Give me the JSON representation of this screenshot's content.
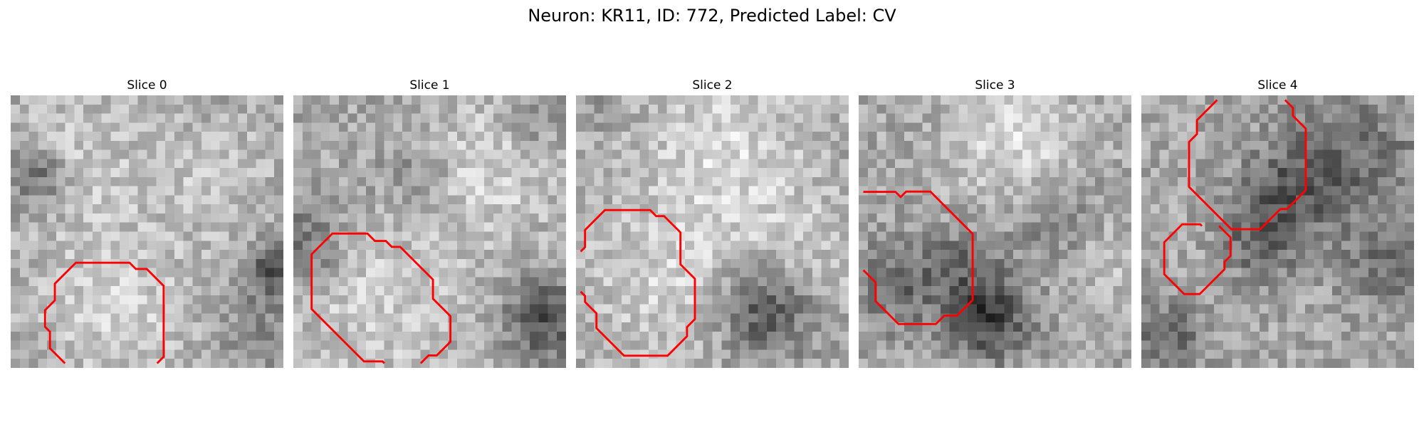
{
  "figure": {
    "title": "Neuron: KR11, ID: 772, Predicted Label: CV"
  },
  "panels": [
    {
      "title": "Slice 0",
      "seed": 11,
      "blobs": [
        [
          0.25,
          0.22,
          0.18,
          35
        ],
        [
          0.75,
          0.3,
          0.16,
          30
        ],
        [
          0.38,
          0.78,
          0.22,
          40
        ],
        [
          0.1,
          0.3,
          0.08,
          -70
        ],
        [
          0.97,
          0.65,
          0.07,
          -90
        ],
        [
          0.9,
          0.88,
          0.1,
          -35
        ]
      ]
    },
    {
      "title": "Slice 1",
      "seed": 23,
      "blobs": [
        [
          0.7,
          0.28,
          0.2,
          45
        ],
        [
          0.3,
          0.78,
          0.22,
          40
        ],
        [
          0.05,
          0.55,
          0.1,
          -60
        ],
        [
          0.92,
          0.82,
          0.1,
          -95
        ],
        [
          0.45,
          0.3,
          0.1,
          -40
        ],
        [
          0.88,
          0.08,
          0.08,
          -40
        ]
      ]
    },
    {
      "title": "Slice 2",
      "seed": 37,
      "blobs": [
        [
          0.55,
          0.22,
          0.22,
          50
        ],
        [
          0.32,
          0.68,
          0.22,
          40
        ],
        [
          0.7,
          0.78,
          0.12,
          -95
        ],
        [
          0.85,
          0.6,
          0.15,
          30
        ],
        [
          0.05,
          0.05,
          0.06,
          -20
        ]
      ]
    },
    {
      "title": "Slice 3",
      "seed": 41,
      "blobs": [
        [
          0.58,
          0.18,
          0.18,
          50
        ],
        [
          0.15,
          0.7,
          0.12,
          -60
        ],
        [
          0.48,
          0.82,
          0.1,
          -110
        ],
        [
          0.38,
          0.62,
          0.1,
          -50
        ],
        [
          0.72,
          0.45,
          0.12,
          -45
        ],
        [
          0.9,
          0.6,
          0.1,
          30
        ]
      ]
    },
    {
      "title": "Slice 4",
      "seed": 53,
      "blobs": [
        [
          0.78,
          0.25,
          0.2,
          -55
        ],
        [
          0.4,
          0.55,
          0.12,
          -75
        ],
        [
          0.55,
          0.35,
          0.12,
          -55
        ],
        [
          0.3,
          0.62,
          0.12,
          30
        ],
        [
          0.1,
          0.88,
          0.1,
          -60
        ],
        [
          0.9,
          0.65,
          0.1,
          -50
        ]
      ]
    }
  ],
  "contours": [
    [
      [
        [
          19.9,
          98.3
        ],
        [
          14.4,
          92.8
        ],
        [
          14.4,
          86.7
        ],
        [
          12.6,
          84.9
        ],
        [
          12.6,
          78.8
        ],
        [
          16.2,
          75.2
        ],
        [
          16.2,
          69.1
        ],
        [
          23.9,
          61.4
        ],
        [
          43.6,
          61.4
        ],
        [
          45.9,
          63.7
        ],
        [
          49.9,
          63.7
        ],
        [
          56.1,
          69.9
        ],
        [
          56.1,
          95.9
        ],
        [
          53.7,
          98.3
        ]
      ]
    ],
    [
      [
        [
          33.4,
          98.3
        ],
        [
          32.7,
          97.6
        ],
        [
          25.9,
          97.6
        ],
        [
          6.7,
          78.4
        ],
        [
          6.7,
          58.3
        ],
        [
          14.3,
          50.7
        ],
        [
          27.2,
          50.7
        ],
        [
          29.9,
          53.4
        ],
        [
          33.9,
          53.4
        ],
        [
          36.1,
          55.6
        ],
        [
          39.2,
          55.6
        ],
        [
          51.2,
          67.6
        ],
        [
          51.2,
          74.6
        ],
        [
          57.6,
          81.0
        ],
        [
          57.6,
          90.4
        ],
        [
          52.6,
          95.4
        ],
        [
          49.6,
          95.4
        ],
        [
          46.7,
          98.3
        ]
      ]
    ],
    [
      [
        [
          1.7,
          57.3
        ],
        [
          3.3,
          55.7
        ],
        [
          3.3,
          49.4
        ],
        [
          10.6,
          42.1
        ],
        [
          27.2,
          42.1
        ],
        [
          29.4,
          44.3
        ],
        [
          32.3,
          44.3
        ],
        [
          38.3,
          50.3
        ],
        [
          38.3,
          62.0
        ],
        [
          43.6,
          67.3
        ],
        [
          43.6,
          82.1
        ],
        [
          40.7,
          85.0
        ],
        [
          40.7,
          88.4
        ],
        [
          33.6,
          95.5
        ],
        [
          17.6,
          95.5
        ],
        [
          7.5,
          85.4
        ],
        [
          7.5,
          80.0
        ],
        [
          3.3,
          75.8
        ],
        [
          3.3,
          73.6
        ],
        [
          1.7,
          72.0
        ]
      ]
    ],
    [
      [
        [
          1.7,
          35.4
        ],
        [
          13.5,
          35.4
        ],
        [
          15.4,
          37.3
        ],
        [
          17.4,
          35.3
        ],
        [
          26.3,
          35.3
        ],
        [
          41.8,
          50.8
        ],
        [
          41.8,
          75.1
        ],
        [
          36.1,
          80.8
        ],
        [
          31.4,
          80.8
        ],
        [
          28.3,
          83.9
        ],
        [
          14.6,
          83.9
        ],
        [
          6.2,
          75.5
        ],
        [
          6.2,
          68.6
        ],
        [
          1.7,
          64.1
        ]
      ]
    ],
    [
      [
        [
          52.7,
          1.7
        ],
        [
          55.6,
          4.6
        ],
        [
          55.6,
          7.5
        ],
        [
          60.3,
          12.2
        ],
        [
          60.3,
          34.8
        ],
        [
          53.4,
          41.7
        ],
        [
          51.0,
          41.7
        ],
        [
          43.6,
          49.1
        ],
        [
          33.0,
          49.1
        ],
        [
          17.5,
          33.6
        ],
        [
          17.5,
          17.1
        ],
        [
          20.4,
          14.2
        ],
        [
          20.4,
          9.1
        ],
        [
          27.8,
          1.7
        ]
      ],
      [
        [
          28.5,
          47.9
        ],
        [
          32.7,
          52.1
        ],
        [
          32.7,
          58.9
        ],
        [
          30.5,
          61.1
        ],
        [
          30.5,
          63.8
        ],
        [
          21.4,
          72.9
        ],
        [
          15.7,
          72.9
        ],
        [
          8.4,
          65.6
        ],
        [
          8.4,
          53.9
        ],
        [
          15.0,
          47.3
        ],
        [
          21.6,
          47.3
        ],
        [
          22.2,
          47.9
        ]
      ]
    ]
  ]
}
